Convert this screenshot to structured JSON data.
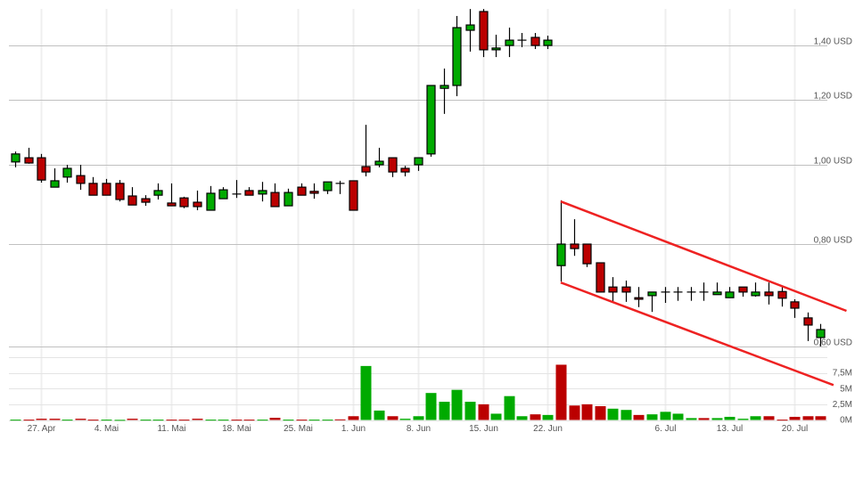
{
  "chart_data": {
    "type": "candlestick",
    "title": "",
    "price_axis": {
      "scale": "log",
      "ticks": [
        {
          "value": 0.6,
          "label": "0,60 USD"
        },
        {
          "value": 0.8,
          "label": "0,80 USD"
        },
        {
          "value": 1.0,
          "label": "1,00 USD"
        },
        {
          "value": 1.2,
          "label": "1,20 USD"
        },
        {
          "value": 1.4,
          "label": "1,40 USD"
        }
      ],
      "range": [
        0.583,
        1.55
      ],
      "position": "right",
      "grid": true
    },
    "volume_axis": {
      "ticks": [
        {
          "value": 0,
          "label": "0M"
        },
        {
          "value": 2.5,
          "label": "2,5M"
        },
        {
          "value": 5,
          "label": "5M"
        },
        {
          "value": 7.5,
          "label": "7,5M"
        }
      ],
      "range": [
        0,
        10
      ],
      "unit": "M"
    },
    "x_ticks": [
      {
        "date": "2020-04-27",
        "label": "27. Apr"
      },
      {
        "date": "2020-05-04",
        "label": "4. Mai"
      },
      {
        "date": "2020-05-11",
        "label": "11. Mai"
      },
      {
        "date": "2020-05-18",
        "label": "18. Mai"
      },
      {
        "date": "2020-05-25",
        "label": "25. Mai"
      },
      {
        "date": "2020-06-01",
        "label": "1. Jun"
      },
      {
        "date": "2020-06-08",
        "label": "8. Jun"
      },
      {
        "date": "2020-06-15",
        "label": "15. Jun"
      },
      {
        "date": "2020-06-22",
        "label": "22. Jun"
      },
      {
        "date": "2020-07-06",
        "label": "6. Jul"
      },
      {
        "date": "2020-07-13",
        "label": "13. Jul"
      },
      {
        "date": "2020-07-20",
        "label": "20. Jul"
      }
    ],
    "colors": {
      "up": "#00aa00",
      "down": "#bb0000",
      "trendline": "#ee2222",
      "grid": "#c0c0c0"
    },
    "columns": [
      "date",
      "open",
      "high",
      "low",
      "close",
      "volume_m",
      "volume_dir"
    ],
    "candles": [
      [
        "2020-04-23",
        1.008,
        1.038,
        0.993,
        1.031,
        0.05,
        "up"
      ],
      [
        "2020-04-24",
        1.02,
        1.049,
        1.003,
        1.005,
        0.05,
        "down"
      ],
      [
        "2020-04-27",
        1.02,
        1.031,
        0.951,
        0.958,
        0.2,
        "down"
      ],
      [
        "2020-04-28",
        0.939,
        0.99,
        0.939,
        0.956,
        0.2,
        "down"
      ],
      [
        "2020-04-29",
        0.966,
        1.0,
        0.951,
        0.99,
        0.05,
        "up"
      ],
      [
        "2020-04-30",
        0.97,
        1.0,
        0.932,
        0.949,
        0.2,
        "down"
      ],
      [
        "2020-05-01",
        0.949,
        0.966,
        0.918,
        0.918,
        0.05,
        "down"
      ],
      [
        "2020-05-04",
        0.949,
        0.961,
        0.918,
        0.918,
        0.05,
        "up"
      ],
      [
        "2020-05-05",
        0.949,
        0.958,
        0.902,
        0.907,
        0.02,
        "up"
      ],
      [
        "2020-05-06",
        0.916,
        0.939,
        0.893,
        0.893,
        0.2,
        "down"
      ],
      [
        "2020-05-07",
        0.909,
        0.918,
        0.891,
        0.9,
        0.05,
        "up"
      ],
      [
        "2020-05-08",
        0.918,
        0.949,
        0.907,
        0.93,
        0.05,
        "up"
      ],
      [
        "2020-05-11",
        0.898,
        0.949,
        0.891,
        0.891,
        0.05,
        "down"
      ],
      [
        "2020-05-12",
        0.911,
        0.914,
        0.885,
        0.889,
        0.05,
        "down"
      ],
      [
        "2020-05-13",
        0.9,
        0.93,
        0.88,
        0.889,
        0.2,
        "down"
      ],
      [
        "2020-05-14",
        0.88,
        0.942,
        0.88,
        0.923,
        0.05,
        "up"
      ],
      [
        "2020-05-15",
        0.909,
        0.939,
        0.909,
        0.932,
        0.05,
        "up"
      ],
      [
        "2020-05-18",
        0.921,
        0.958,
        0.911,
        0.921,
        0.05,
        "down"
      ],
      [
        "2020-05-19",
        0.93,
        0.939,
        0.918,
        0.918,
        0.05,
        "down"
      ],
      [
        "2020-05-20",
        0.921,
        0.953,
        0.902,
        0.93,
        0.05,
        "up"
      ],
      [
        "2020-05-21",
        0.925,
        0.949,
        0.889,
        0.889,
        0.35,
        "down"
      ],
      [
        "2020-05-22",
        0.891,
        0.935,
        0.891,
        0.925,
        0.05,
        "up"
      ],
      [
        "2020-05-26",
        0.939,
        0.949,
        0.918,
        0.918,
        0.05,
        "down"
      ],
      [
        "2020-05-27",
        0.928,
        0.949,
        0.909,
        0.923,
        0.05,
        "up"
      ],
      [
        "2020-05-28",
        0.93,
        0.953,
        0.921,
        0.953,
        0.05,
        "up"
      ],
      [
        "2020-05-29",
        0.949,
        0.956,
        0.921,
        0.949,
        0.1,
        "down"
      ],
      [
        "2020-06-01",
        0.956,
        0.956,
        0.88,
        0.88,
        0.6,
        "down"
      ],
      [
        "2020-06-02",
        0.995,
        1.119,
        0.968,
        0.98,
        8.6,
        "up"
      ],
      [
        "2020-06-03",
        1.0,
        1.049,
        0.993,
        1.01,
        1.5,
        "up"
      ],
      [
        "2020-06-04",
        1.02,
        1.02,
        0.966,
        0.98,
        0.6,
        "down"
      ],
      [
        "2020-06-05",
        0.99,
        0.997,
        0.968,
        0.98,
        0.2,
        "up"
      ],
      [
        "2020-06-08",
        1.0,
        1.02,
        0.983,
        1.02,
        0.6,
        "up"
      ],
      [
        "2020-06-09",
        1.031,
        1.031,
        1.023,
        1.25,
        4.3,
        "up"
      ],
      [
        "2020-06-10",
        1.24,
        1.311,
        1.154,
        1.25,
        2.9,
        "up"
      ],
      [
        "2020-06-11",
        1.25,
        1.52,
        1.213,
        1.471,
        4.8,
        "up"
      ],
      [
        "2020-06-12",
        1.46,
        1.55,
        1.375,
        1.482,
        2.9,
        "up"
      ],
      [
        "2020-06-15",
        1.539,
        1.55,
        1.354,
        1.382,
        2.5,
        "down"
      ],
      [
        "2020-06-16",
        1.382,
        1.442,
        1.354,
        1.389,
        1.0,
        "up"
      ],
      [
        "2020-06-17",
        1.399,
        1.471,
        1.354,
        1.42,
        3.8,
        "up"
      ],
      [
        "2020-06-18",
        1.42,
        1.449,
        1.392,
        1.42,
        0.6,
        "up"
      ],
      [
        "2020-06-19",
        1.431,
        1.449,
        1.385,
        1.399,
        0.9,
        "down"
      ],
      [
        "2020-06-22",
        1.399,
        1.438,
        1.385,
        1.42,
        0.8,
        "up"
      ],
      [
        "2020-06-23",
        0.753,
        0.905,
        0.72,
        0.8,
        8.8,
        "down"
      ],
      [
        "2020-06-24",
        0.8,
        0.858,
        0.774,
        0.79,
        2.3,
        "down"
      ],
      [
        "2020-06-25",
        0.8,
        0.8,
        0.75,
        0.757,
        2.5,
        "down"
      ],
      [
        "2020-06-26",
        0.759,
        0.759,
        0.699,
        0.699,
        2.2,
        "down"
      ],
      [
        "2020-06-29",
        0.709,
        0.729,
        0.68,
        0.699,
        1.8,
        "up"
      ],
      [
        "2020-06-30",
        0.709,
        0.722,
        0.68,
        0.699,
        1.6,
        "up"
      ],
      [
        "2020-07-01",
        0.688,
        0.709,
        0.67,
        0.685,
        0.8,
        "down"
      ],
      [
        "2020-07-02",
        0.692,
        0.699,
        0.661,
        0.699,
        0.9,
        "up"
      ],
      [
        "2020-07-06",
        0.699,
        0.709,
        0.678,
        0.699,
        1.3,
        "up"
      ],
      [
        "2020-07-07",
        0.699,
        0.709,
        0.682,
        0.699,
        1.0,
        "up"
      ],
      [
        "2020-07-08",
        0.699,
        0.709,
        0.682,
        0.699,
        0.3,
        "up"
      ],
      [
        "2020-07-09",
        0.699,
        0.718,
        0.682,
        0.699,
        0.3,
        "down"
      ],
      [
        "2020-07-10",
        0.694,
        0.718,
        0.694,
        0.699,
        0.3,
        "up"
      ],
      [
        "2020-07-13",
        0.688,
        0.709,
        0.688,
        0.699,
        0.5,
        "up"
      ],
      [
        "2020-07-14",
        0.709,
        0.709,
        0.69,
        0.699,
        0.2,
        "up"
      ],
      [
        "2020-07-15",
        0.692,
        0.718,
        0.69,
        0.699,
        0.6,
        "up"
      ],
      [
        "2020-07-16",
        0.699,
        0.718,
        0.675,
        0.692,
        0.6,
        "down"
      ],
      [
        "2020-07-17",
        0.7,
        0.709,
        0.671,
        0.687,
        0.05,
        "down"
      ],
      [
        "2020-07-20",
        0.68,
        0.685,
        0.65,
        0.668,
        0.5,
        "down"
      ],
      [
        "2020-07-21",
        0.65,
        0.66,
        0.609,
        0.637,
        0.6,
        "down"
      ],
      [
        "2020-07-22",
        0.615,
        0.639,
        0.6,
        0.629,
        0.6,
        "down"
      ]
    ],
    "trendlines": [
      {
        "from": {
          "date": "2020-06-23",
          "price": 0.902
        },
        "to": {
          "date": "2020-07-24",
          "price": 0.663
        }
      },
      {
        "from": {
          "date": "2020-06-23",
          "price": 0.718
        },
        "to": {
          "date": "2020-07-23",
          "price": 0.538
        }
      }
    ]
  }
}
